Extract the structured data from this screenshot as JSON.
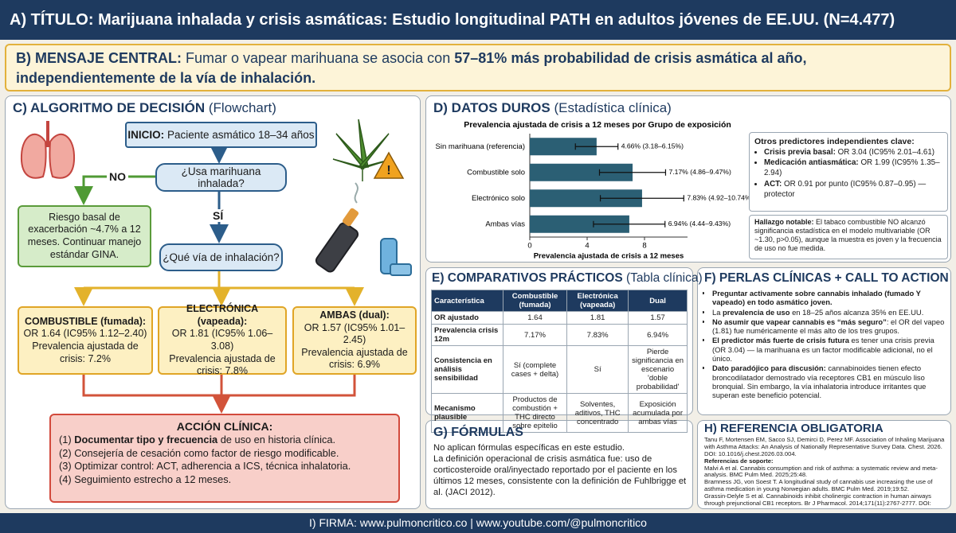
{
  "header": {
    "title": "A) TÍTULO: Marijuana inhalada y crisis asmáticas: Estudio longitudinal PATH en adultos jóvenes de EE.UU. (N=4.477)"
  },
  "message": {
    "label": "B) MENSAJE CENTRAL:",
    "text": "Fumar o vapear marihuana se asocia con",
    "highlight": "57–81%",
    "tail": "más probabilidad de crisis asmática al año, independientemente de la vía de inhalación."
  },
  "flowchart": {
    "title": "C) ALGORITMO DE DECISIÓN",
    "subtitle": "(Flowchart)",
    "start": {
      "label": "INICIO:",
      "text": "Paciente asmático 18–34 años"
    },
    "question_1": "¿Usa marihuana inhalada?",
    "no": "NO",
    "no_outcome": "Riesgo basal de exacerbación ~4.7% a 12 meses. Continuar manejo estándar GINA.",
    "yes": "SÍ",
    "question_2": "¿Qué vía de inhalación?",
    "branches": [
      {
        "title": "COMBUSTIBLE (fumada):",
        "or": "OR 1.64 (IC95% 1.12–2.40)",
        "prevalence": "Prevalencia ajustada de crisis: 7.2%"
      },
      {
        "title": "ELECTRÓNICA (vapeada):",
        "or": "OR 1.81 (IC95% 1.06–3.08)",
        "prevalence": "Prevalencia ajustada de crisis: 7.8%"
      },
      {
        "title": "AMBAS (dual):",
        "or": "OR 1.57 (IC95% 1.01–2.45)",
        "prevalence": "Prevalencia ajustada de crisis: 6.9%"
      }
    ],
    "action": {
      "title": "ACCIÓN CLÍNICA:",
      "items": [
        {
          "number": "(1)",
          "bold": "Documentar tipo y frecuencia",
          "text": "de uso en historia clínica."
        },
        {
          "text": "(2) Consejería de cesación como factor de riesgo modificable."
        },
        {
          "text": "(3) Optimizar control: ACT, adherencia a ICS, técnica inhalatoria."
        },
        {
          "text": "(4) Seguimiento estrecho a 12 meses."
        }
      ]
    }
  },
  "data_section": {
    "title": "D) DATOS DUROS",
    "subtitle": "(Estadística clínica)",
    "predictors": {
      "title": "Otros predictores independientes clave:",
      "items": [
        {
          "bold": "Crisis previa basal:",
          "text": "OR 3.04 (IC95% 2.01–4.61)"
        },
        {
          "bold": "Medicación antiasmática:",
          "text": "OR 1.99 (IC95% 1.35–2.94)"
        },
        {
          "bold": "ACT:",
          "text": "OR 0.91 por punto (IC95% 0.87–0.95) — protector"
        }
      ]
    },
    "finding": {
      "bold": "Hallazgo notable:",
      "text": "El tabaco combustible NO alcanzó significancia estadística en el modelo multivariable (OR ~1.30, p>0.05), aunque la muestra es joven y la frecuencia de uso no fue medida."
    }
  },
  "chart_data": {
    "type": "bar",
    "orientation": "horizontal",
    "title": "Prevalencia ajustada de crisis a 12 meses por Grupo de exposición",
    "x_label": "Prevalencia ajustada de crisis a 12 meses",
    "categories": [
      "Sin marihuana (referencia)",
      "Combustible solo",
      "Electrónico solo",
      "Ambas vías"
    ],
    "values": [
      4.66,
      7.17,
      7.83,
      6.94
    ],
    "ci_low": [
      3.18,
      4.86,
      4.92,
      4.44
    ],
    "ci_high": [
      6.15,
      9.47,
      10.74,
      9.43
    ],
    "value_labels": [
      "4.66% (3.18–6.15%)",
      "7.17% (4.86–9.47%)",
      "7.83% (4.92–10.74%)",
      "6.94% (4.44–9.43%)"
    ],
    "color": "#2b5f74",
    "xlim": [
      0,
      11
    ],
    "xticks": [
      0,
      4,
      8
    ]
  },
  "table": {
    "title": "E) COMPARATIVOS PRÁCTICOS",
    "subtitle": "(Tabla clínica)",
    "header": [
      "Característica",
      "Combustible (fumada)",
      "Electrónica (vapeada)",
      "Dual"
    ],
    "rows": [
      [
        "OR ajustado",
        "1.64",
        "1.81",
        "1.57"
      ],
      [
        "Prevalencia crisis 12m",
        "7.17%",
        "7.83%",
        "6.94%"
      ],
      [
        "Consistencia en análisis sensibilidad",
        "Sí (complete cases + delta)",
        "Sí",
        "Pierde significancia en escenario 'doble probabilidad'"
      ],
      [
        "Mecanismo plausible",
        "Productos de combustión + THC directo sobre epitelio",
        "Solventes, aditivos, THC concentrado",
        "Exposición acumulada por ambas vías"
      ]
    ]
  },
  "pearls": {
    "title": "F) PERLAS CLÍNICAS + CALL TO ACTION",
    "items": [
      {
        "bold": "Preguntar activamente sobre cannabis inhalado (fumado Y vapeado) en todo asmático joven."
      },
      {
        "before": "La",
        "bold": "prevalencia de uso",
        "text": "en 18–25 años alcanza 35% en EE.UU."
      },
      {
        "bold": "No asumir que vapear cannabis es “más seguro”",
        "text": ": el OR del vapeo (1.81) fue numéricamente el más alto de los tres grupos."
      },
      {
        "bold": "El predictor más fuerte de crisis futura",
        "text": "es tener una crisis previa (OR 3.04) — la marihuana es un factor modificable adicional, no el único."
      },
      {
        "bold": "Dato paradójico para discusión:",
        "text": "cannabinoides tienen efecto broncodilatador demostrado vía receptores CB1 en músculo liso bronquial. Sin embargo, la vía inhalatoria introduce irritantes que superan este beneficio potencial."
      }
    ]
  },
  "formulas": {
    "title": "G) FÓRMULAS",
    "paragraphs": [
      "No aplican fórmulas específicas en este estudio.",
      "La definición operacional de crisis asmática fue: uso de corticosteroide oral/inyectado reportado por el paciente en los últimos 12 meses, consistente con la definición de Fuhlbrigge et al. (JACI 2012)."
    ]
  },
  "reference": {
    "title": "H) REFERENCIA OBLIGATORIA",
    "main": "Tanu F, Mortensen EM, Sacco SJ, Demirci D, Perez MF. Association of Inhaling Marijuana with Asthma Attacks: An Analysis of Nationally Representative Survey Data. Chest. 2026. DOI: 10.1016/j.chest.2026.03.004.",
    "support_label": "Referencias de soporte:",
    "support": [
      "Malvi A et al. Cannabis consumption and risk of asthma: a systematic review and meta-analysis. BMC Pulm Med. 2025;25:48.",
      "Bramness JG, von Soest T. A longitudinal study of cannabis use increasing the use of asthma medication in young Norwegian adults. BMC Pulm Med. 2019;19:52.",
      "Grassin-Delyle S et al. Cannabinoids inhibit cholinergic contraction in human airways through prejunctional CB1 receptors. Br J Pharmacol. 2014;171(11):2767-2777. DOI: 10.1111/bph.12597."
    ]
  },
  "footer": {
    "text": "I) FIRMA: www.pulmoncritico.co | www.youtube.com/@pulmoncritico"
  }
}
